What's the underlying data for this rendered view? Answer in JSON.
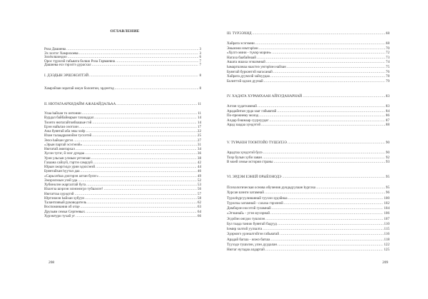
{
  "left_page": {
    "title": "ОГЛАВЛЕНИЕ",
    "page_number": "208",
    "groups": [
      {
        "entries": [
          {
            "title": "Роза Дашиева",
            "page": "3"
          },
          {
            "title": "Эх эхэтэг Хамрохоева",
            "page": "3"
          },
          {
            "title": "Зохёолшондоо",
            "page": "6"
          },
          {
            "title": "Орос түрэлэй габьяата болшо Роза Гармаевна",
            "page": "7"
          },
          {
            "title": "Дашиева ехэ гэрэлтэ дурасхал",
            "page": "7"
          }
        ]
      },
      {
        "entries": [
          {
            "title": "I. ДЭЭДЫН ЭРШЭНЭЛТЭЙ",
            "page": "8"
          }
        ]
      },
      {
        "entries": [
          {
            "title": "Хамрэйзан зоратай оюун болонтон, эрдэнтэд",
            "page": "8"
          }
        ]
      },
      {
        "entries": [
          {
            "title": "II. НЮТАГААРХИДАЙМ АЖАБАЙДАЛЬАА",
            "page": "11"
          }
        ]
      },
      {
        "entries": [
          {
            "title": "Улаа hайхан то онтонин",
            "page": "11"
          },
          {
            "title": "Вурдал байбайнарын тахиаддал",
            "page": "14"
          },
          {
            "title": "Тоонто нютагайтоябзашые гэй",
            "page": "14"
          },
          {
            "title": "Ерэн найьтаи оэотхин",
            "page": "17"
          },
          {
            "title": "Ажа буянтай аба эжы хоёр",
            "page": "22"
          },
          {
            "title": "Илан талаадразнэйэн тусхэтэй",
            "page": "25"
          },
          {
            "title": "Энхэ hайхан үргэл",
            "page": "27"
          },
          {
            "title": "«Эрын партай эсэгэнэй»",
            "page": "31"
          },
          {
            "title": "Нютатай амигархал",
            "page": "34"
          },
          {
            "title": "Хусэн тугэг, й эзэг дундаа",
            "page": "36"
          },
          {
            "title": "Урэн ульсын улэзын үетэнэан",
            "page": "38"
          },
          {
            "title": "Газаана сайхуй, гэртээ самдзуй",
            "page": "42"
          },
          {
            "title": "Юрын эжэргэлдэ урин эдэлсэеэй",
            "page": "44"
          },
          {
            "title": "Буянтайхан hуутал даа",
            "page": "46"
          },
          {
            "title": "«Сарьсатhаа дэлгэрэн алтан булэг»",
            "page": "49"
          },
          {
            "title": "Эжэрэлэхын узэй уда",
            "page": "52"
          },
          {
            "title": "Хубинолэн жаргалтай буга",
            "page": "53"
          },
          {
            "title": "Илаэтза шэрээн элэнэнэгрэ тубшэлэт!",
            "page": "56"
          },
          {
            "title": "Нютаттаа хурэдтэй",
            "page": "57"
          },
          {
            "title": "Юртэнжэн hайхан хубуун",
            "page": "58"
          },
          {
            "title": "Талантливый руководитель",
            "page": "62"
          },
          {
            "title": "Воспоминания об отце",
            "page": "63"
          },
          {
            "title": "Друзьям семьи Сергеевых",
            "page": "64"
          },
          {
            "title": "Хурэмтури тухай уг",
            "page": "66"
          }
        ]
      }
    ]
  },
  "right_page": {
    "page_number": "209",
    "groups": [
      {
        "entries": [
          {
            "title": "III. ТҮРЭЭХИД",
            "page": "68"
          }
        ]
      },
      {
        "entries": [
          {
            "title": "Хайрата эсэгэмни",
            "page": "68"
          },
          {
            "title": "Энынэни нэмтэрhэн",
            "page": "70"
          },
          {
            "title": "«Хулгэ мини - түмэр морин»",
            "page": "72"
          },
          {
            "title": "Нагаха баабайнаай",
            "page": "73"
          },
          {
            "title": "Ашата ишаха эгэшэмнай",
            "page": "74"
          },
          {
            "title": "hамаргшзнаа наастнэ унгэрhэн найзан",
            "page": "75"
          },
          {
            "title": "Буянтай буркэнтэй нагасанай",
            "page": "76"
          },
          {
            "title": "Хайрата дуумхэй зайхуудаа",
            "page": "78"
          },
          {
            "title": "Болиттэй одхон дуунай",
            "page": "79"
          }
        ]
      },
      {
        "entries": [
          {
            "title": "IV. ХАДАТА ХУРАМХААН АЙХУДАНАРНАЙ",
            "page": "83"
          }
        ]
      },
      {
        "entries": [
          {
            "title": "Алтан худатхамнай",
            "page": "83"
          },
          {
            "title": "Арадайнтан урда зааг габьяатай",
            "page": "84"
          },
          {
            "title": "По-прежнему молод",
            "page": "86"
          },
          {
            "title": "Алдар бэшнаар суурхуудаг",
            "page": "87"
          },
          {
            "title": "Арад заадаа хундэтэй",
            "page": "88"
          }
        ]
      },
      {
        "entries": [
          {
            "title": "V. ТҮРАНЗН ТООНТОЙО ТҮШЭЛЭЭ",
            "page": "90"
          }
        ]
      },
      {
        "entries": [
          {
            "title": "Арадтаа хундэтэй булэ",
            "page": "90"
          },
          {
            "title": "Тоэр булын хуби заяан",
            "page": "92"
          },
          {
            "title": "В моей семье история страны",
            "page": "93"
          }
        ]
      },
      {
        "entries": [
          {
            "title": "VI. ЭРДЭМ ЕЭНЕЙ ОРЫЁОНОДЭ",
            "page": "95"
          }
        ]
      },
      {
        "entries": [
          {
            "title": "Психологическая основа обучения дундадуулаан hургахa",
            "page": "95"
          },
          {
            "title": "Хурсан шэнги хатамнай",
            "page": "96"
          },
          {
            "title": "Турэлhүргуулинаннай туухэн худэйнаа",
            "page": "100"
          },
          {
            "title": "Турэлхы хатамнай - сахаха гэрэлнэй",
            "page": "102"
          },
          {
            "title": "Домборэн носэтэй гуламнай",
            "page": "104"
          },
          {
            "title": "«Эгэшнай» - угэн мухэрнай",
            "page": "106"
          },
          {
            "title": "Эгдэйэн онгдоо тушэлэн",
            "page": "107"
          },
          {
            "title": "Бул таада таниж буянтай бадууд",
            "page": "110"
          },
          {
            "title": "hэмир холтой уулзалта",
            "page": "115"
          },
          {
            "title": "Эдэрмэгэ урэналтэйгэн габьяатай",
            "page": "116"
          },
          {
            "title": "Арадай багша - жэжэ багша",
            "page": "118"
          },
          {
            "title": "Туухэдэ тушэлэн, улэн дуудалан",
            "page": "122"
          },
          {
            "title": "Нютаг нугадаа алдартай",
            "page": "125"
          }
        ]
      }
    ]
  }
}
